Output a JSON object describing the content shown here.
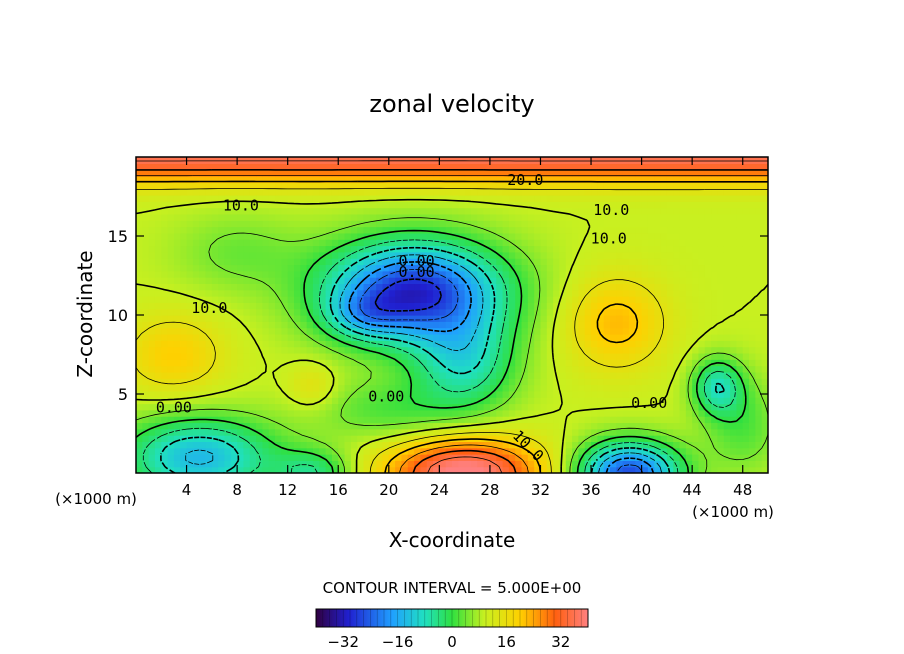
{
  "chart_data": {
    "type": "heatmap",
    "title": "zonal velocity",
    "xlabel": "X-coordinate",
    "ylabel": "Z-coordinate",
    "x_unit": "(×1000 m)",
    "y_unit": "(×1000 m)",
    "xlim": [
      0,
      50
    ],
    "ylim": [
      0,
      20
    ],
    "x_ticks": [
      "4",
      "8",
      "12",
      "16",
      "20",
      "24",
      "28",
      "32",
      "36",
      "40",
      "44",
      "48"
    ],
    "y_ticks": [
      "5",
      "10",
      "15"
    ],
    "contour_interval_text": "CONTOUR INTERVAL = 5.000E+00",
    "colorbar": {
      "min": -40,
      "max": 40,
      "ticks": [
        "−32",
        "−16",
        "0",
        "16",
        "32"
      ],
      "colormap": "rainbow"
    },
    "contour_labels": [
      "10.0",
      "20.0",
      "10.0",
      "10.0",
      "10.0",
      "0.00",
      "0.00",
      "0.00",
      "0.00",
      "10.0",
      "0.00"
    ],
    "features": [
      {
        "kind": "min",
        "x": 22,
        "z": 12,
        "value": -30
      },
      {
        "kind": "min",
        "x": 39,
        "z": 0.5,
        "value": -25
      },
      {
        "kind": "min",
        "x": 5,
        "z": 1.5,
        "value": -15
      },
      {
        "kind": "min",
        "x": 46,
        "z": 5.5,
        "value": -12
      },
      {
        "kind": "max",
        "x": 26,
        "z": 0.3,
        "value": 38
      },
      {
        "kind": "max",
        "x": 25,
        "z": 19.3,
        "value": 36
      },
      {
        "kind": "max",
        "x": 2,
        "z": 19,
        "value": 36
      },
      {
        "kind": "max",
        "x": 48,
        "z": 19,
        "value": 34
      },
      {
        "kind": "max",
        "x": 3,
        "z": 7.5,
        "value": 18
      },
      {
        "kind": "max",
        "x": 38,
        "z": 9.5,
        "value": 20
      },
      {
        "kind": "max",
        "x": 14,
        "z": 5.5,
        "value": 14
      }
    ]
  }
}
